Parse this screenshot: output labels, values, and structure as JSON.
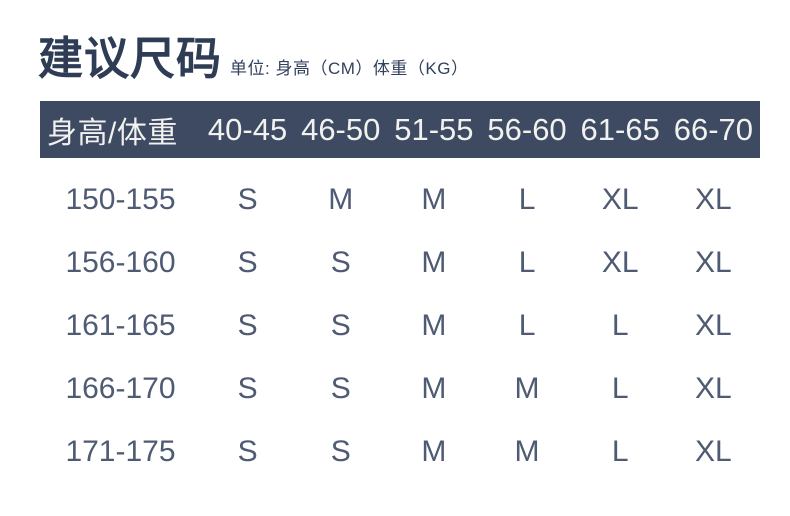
{
  "header": {
    "title": "建议尺码",
    "unit_note": "单位: 身高（CM）体重（KG）"
  },
  "colors": {
    "background": "#ffffff",
    "title_text": "#2e3c56",
    "table_header_bg": "#3d4a61",
    "table_header_text": "#f1f2f0",
    "table_body_text": "#4e5b73"
  },
  "chart_data": {
    "type": "table",
    "title": "建议尺码",
    "unit_note": "单位: 身高（CM）体重（KG）",
    "row_axis_label": "身高 (CM)",
    "col_axis_label": "体重 (KG)",
    "columns": [
      "身高/体重",
      "40-45",
      "46-50",
      "51-55",
      "56-60",
      "61-65",
      "66-70"
    ],
    "rows": [
      [
        "150-155",
        "S",
        "M",
        "M",
        "L",
        "XL",
        "XL"
      ],
      [
        "156-160",
        "S",
        "S",
        "M",
        "L",
        "XL",
        "XL"
      ],
      [
        "161-165",
        "S",
        "S",
        "M",
        "L",
        "L",
        "XL"
      ],
      [
        "166-170",
        "S",
        "S",
        "M",
        "M",
        "L",
        "XL"
      ],
      [
        "171-175",
        "S",
        "S",
        "M",
        "M",
        "L",
        "XL"
      ]
    ]
  }
}
